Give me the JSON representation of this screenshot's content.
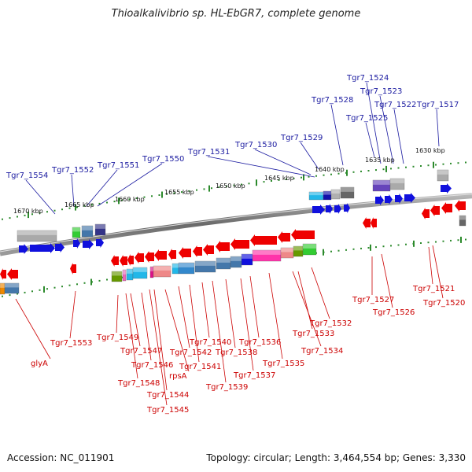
{
  "title": "Thioalkalivibrio sp. HL-EbGR7, complete genome",
  "footer": {
    "accession": "Accession: NC_011901",
    "stats": "Topology: circular; Length: 3,464,554 bp; Genes: 3,330"
  },
  "scale": [
    "1630 kbp",
    "1635 kbp",
    "1640 kbp",
    "1645 kbp",
    "1650 kbp",
    "1655 kbp",
    "1660 kbp",
    "1665 kbp",
    "1670 kbp"
  ],
  "labels_top": [
    "Tgr7_1524",
    "Tgr7_1523",
    "Tgr7_1528",
    "Tgr7_1522",
    "Tgr7_1517",
    "Tgr7_1525",
    "Tgr7_1529",
    "Tgr7_1530",
    "Tgr7_1531",
    "Tgr7_1550",
    "Tgr7_1551",
    "Tgr7_1552",
    "Tgr7_1554"
  ],
  "labels_bottom": [
    "Tgr7_1521",
    "Tgr7_1520",
    "Tgr7_1527",
    "Tgr7_1526",
    "Tgr7_1532",
    "Tgr7_1533",
    "Tgr7_1534",
    "Tgr7_1535",
    "Tgr7_1536",
    "Tgr7_1537",
    "Tgr7_1538",
    "Tgr7_1539",
    "Tgr7_1540",
    "Tgr7_1541",
    "Tgr7_1542",
    "rpsA",
    "Tgr7_1544",
    "Tgr7_1545",
    "Tgr7_1546",
    "Tgr7_1547",
    "Tgr7_1548",
    "Tgr7_1549",
    "Tgr7_1553",
    "glyA"
  ]
}
